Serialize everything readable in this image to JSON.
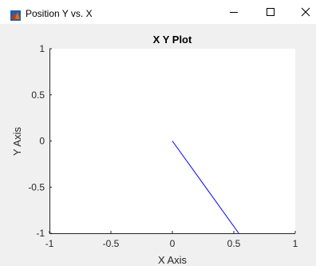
{
  "window": {
    "title": "Position Y vs. X",
    "icon": "matlab-figure-icon",
    "controls": [
      "minimize",
      "maximize",
      "close"
    ]
  },
  "chart_data": {
    "type": "line",
    "title": "X Y Plot",
    "xlabel": "X Axis",
    "ylabel": "Y Axis",
    "xlim": [
      -1,
      1
    ],
    "ylim": [
      -1,
      1
    ],
    "xticks": [
      "-1",
      "-0.5",
      "0",
      "0.5",
      "1"
    ],
    "xtick_values": [
      -1,
      -0.5,
      0,
      0.5,
      1
    ],
    "yticks": [
      "1",
      "0.5",
      "0",
      "-0.5",
      "-1"
    ],
    "ytick_values": [
      1,
      0.5,
      0,
      -0.5,
      -1
    ],
    "grid": false,
    "series": [
      {
        "x": [
          0,
          0.54
        ],
        "y": [
          0,
          -1
        ],
        "color": "#0000ff"
      }
    ]
  }
}
